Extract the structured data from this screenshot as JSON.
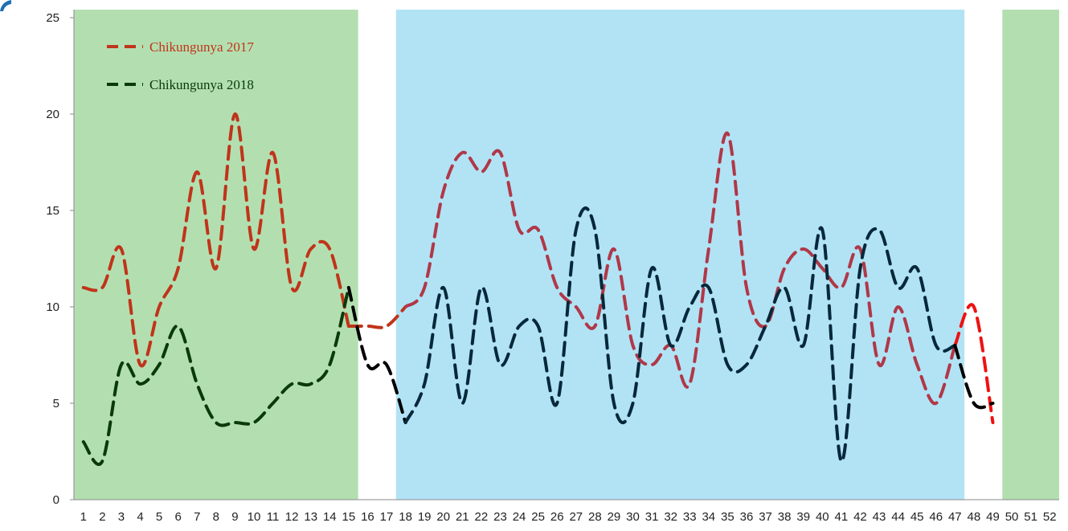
{
  "chart_data": {
    "type": "line",
    "title": "",
    "xlabel": "",
    "ylabel": "",
    "ylim": [
      0,
      25
    ],
    "yticks": [
      0,
      5,
      10,
      15,
      20,
      25
    ],
    "x": [
      1,
      2,
      3,
      4,
      5,
      6,
      7,
      8,
      9,
      10,
      11,
      12,
      13,
      14,
      15,
      16,
      17,
      18,
      19,
      20,
      21,
      22,
      23,
      24,
      25,
      26,
      27,
      28,
      29,
      30,
      31,
      32,
      33,
      34,
      35,
      36,
      37,
      38,
      39,
      40,
      41,
      42,
      43,
      44,
      45,
      46,
      47,
      48,
      49,
      50,
      51,
      52
    ],
    "grid": false,
    "legend_position": "top-left",
    "shaded_regions": [
      {
        "x_from": 0.5,
        "x_to": 15.5,
        "color": "#b3dfb0"
      },
      {
        "x_from": 17.5,
        "x_to": 47.5,
        "color": "#b1e3f5"
      },
      {
        "x_from": 49.5,
        "x_to": 52.5,
        "color": "#b3dfb0"
      }
    ],
    "series": [
      {
        "name": "Chikungunya 2017",
        "color": "#c0341a",
        "legend_color": "#c0341a",
        "line_style": "dashed",
        "x": [
          1,
          2,
          3,
          4,
          5,
          6,
          7,
          8,
          9,
          10,
          11,
          12,
          13,
          14,
          15,
          16,
          17,
          18,
          19,
          20,
          21,
          22,
          23,
          24,
          25,
          26,
          27,
          28,
          29,
          30,
          31,
          32,
          33,
          34,
          35,
          36,
          37,
          38,
          39,
          40,
          41,
          42,
          43,
          44,
          45,
          46,
          47,
          48,
          49
        ],
        "values": [
          11,
          11,
          13,
          7,
          10,
          12,
          17,
          12,
          20,
          13,
          18,
          11,
          13,
          13,
          9,
          9,
          9,
          10,
          11,
          16,
          18,
          17,
          18,
          14,
          14,
          11,
          10,
          9,
          13,
          8,
          7,
          8,
          6,
          13,
          19,
          11,
          9,
          12,
          13,
          12,
          11,
          13,
          7,
          10,
          7,
          5,
          8,
          10,
          4
        ],
        "segment_colors": [
          {
            "from": 1,
            "to": 15,
            "color": "#c0341a"
          },
          {
            "from": 15,
            "to": 18,
            "color": "#c0341a"
          },
          {
            "from": 18,
            "to": 47,
            "color": "#b03848"
          },
          {
            "from": 47,
            "to": 49,
            "color": "#ee1111"
          }
        ]
      },
      {
        "name": "Chikungunya 2018",
        "color": "#0a3a0a",
        "legend_color": "#0a3a0a",
        "line_style": "dashed",
        "x": [
          1,
          2,
          3,
          4,
          5,
          6,
          7,
          8,
          9,
          10,
          11,
          12,
          13,
          14,
          15,
          16,
          17,
          18,
          19,
          20,
          21,
          22,
          23,
          24,
          25,
          26,
          27,
          28,
          29,
          30,
          31,
          32,
          33,
          34,
          35,
          36,
          37,
          38,
          39,
          40,
          41,
          42,
          43,
          44,
          45,
          46,
          47,
          48,
          49
        ],
        "values": [
          3,
          2,
          7,
          6,
          7,
          9,
          6,
          4,
          4,
          4,
          5,
          6,
          6,
          7,
          11,
          7,
          7,
          4,
          6,
          11,
          5,
          11,
          7,
          9,
          9,
          5,
          14,
          14,
          5,
          5,
          12,
          8,
          10,
          11,
          7,
          7,
          9,
          11,
          8,
          14,
          2,
          12,
          14,
          11,
          12,
          8,
          8,
          5,
          5
        ],
        "segment_colors": [
          {
            "from": 1,
            "to": 15,
            "color": "#0a3a0a"
          },
          {
            "from": 15,
            "to": 18,
            "color": "#000000"
          },
          {
            "from": 18,
            "to": 47,
            "color": "#06283a"
          },
          {
            "from": 47,
            "to": 49,
            "color": "#000000"
          }
        ]
      }
    ]
  }
}
